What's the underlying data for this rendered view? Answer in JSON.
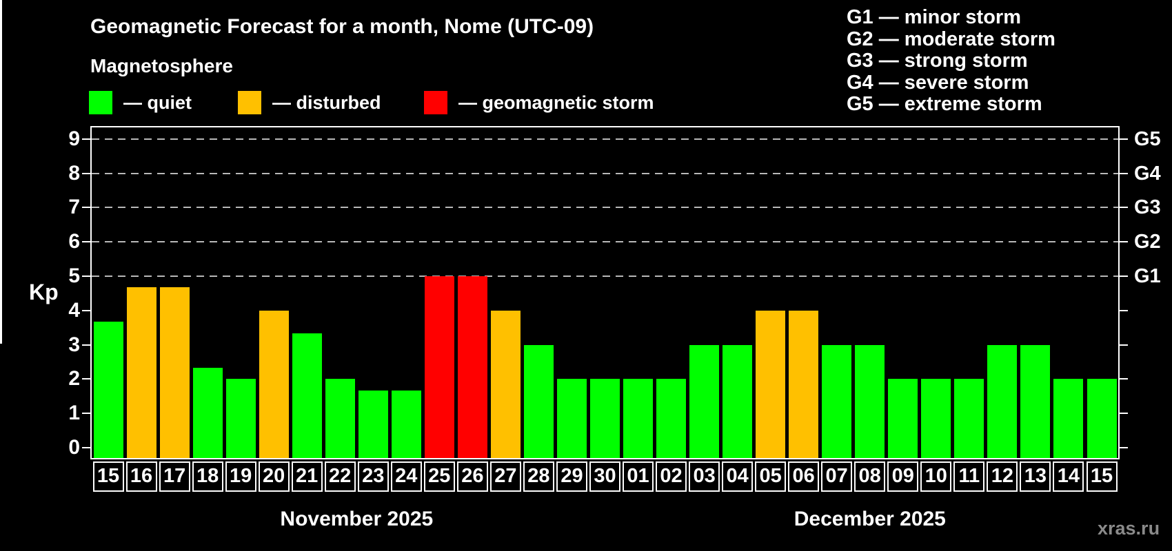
{
  "title": "Geomagnetic Forecast for a month, Nome (UTC-09)",
  "subtitle": "Magnetosphere",
  "legend": [
    {
      "label": "— quiet",
      "status": "quiet",
      "color": "#00ff00"
    },
    {
      "label": "— disturbed",
      "status": "disturbed",
      "color": "#ffc000"
    },
    {
      "label": "— geomagnetic storm",
      "status": "storm",
      "color": "#ff0000"
    }
  ],
  "storm_legend": [
    "G1 — minor storm",
    "G2 — moderate storm",
    "G3 — strong storm",
    "G4 — severe storm",
    "G5 — extreme storm"
  ],
  "watermark": "xras.ru",
  "chart_data": {
    "type": "bar",
    "title": "Geomagnetic Forecast for a month, Nome (UTC-09)",
    "ylabel": "Kp",
    "ylim": [
      0,
      9
    ],
    "yticks": [
      0,
      1,
      2,
      3,
      4,
      5,
      6,
      7,
      8,
      9
    ],
    "grid": "dashed horizontal lines at Kp 5 to 9",
    "legend_position": "top",
    "right_axis_labels": [
      {
        "label": "G1",
        "kp": 5
      },
      {
        "label": "G2",
        "kp": 6
      },
      {
        "label": "G3",
        "kp": 7
      },
      {
        "label": "G4",
        "kp": 8
      },
      {
        "label": "G5",
        "kp": 9
      }
    ],
    "status_colors": {
      "quiet": "#00ff00",
      "disturbed": "#ffc000",
      "storm": "#ff0000"
    },
    "series": [
      {
        "name": "November 2025",
        "categories": [
          "15",
          "16",
          "17",
          "18",
          "19",
          "20",
          "21",
          "22",
          "23",
          "24",
          "25",
          "26",
          "27",
          "28",
          "29",
          "30"
        ],
        "values": [
          3.67,
          4.67,
          4.67,
          2.33,
          2,
          4,
          3.33,
          2,
          1.67,
          1.67,
          5,
          5,
          4,
          3,
          2,
          2
        ],
        "status": [
          "quiet",
          "disturbed",
          "disturbed",
          "quiet",
          "quiet",
          "disturbed",
          "quiet",
          "quiet",
          "quiet",
          "quiet",
          "storm",
          "storm",
          "disturbed",
          "quiet",
          "quiet",
          "quiet"
        ]
      },
      {
        "name": "December 2025",
        "categories": [
          "01",
          "02",
          "03",
          "04",
          "05",
          "06",
          "07",
          "08",
          "09",
          "10",
          "11",
          "12",
          "13",
          "14",
          "15"
        ],
        "values": [
          2,
          2,
          3,
          3,
          4,
          4,
          3,
          3,
          2,
          2,
          2,
          3,
          3,
          2,
          2
        ],
        "status": [
          "quiet",
          "quiet",
          "quiet",
          "quiet",
          "disturbed",
          "disturbed",
          "quiet",
          "quiet",
          "quiet",
          "quiet",
          "quiet",
          "quiet",
          "quiet",
          "quiet",
          "quiet"
        ]
      }
    ]
  }
}
